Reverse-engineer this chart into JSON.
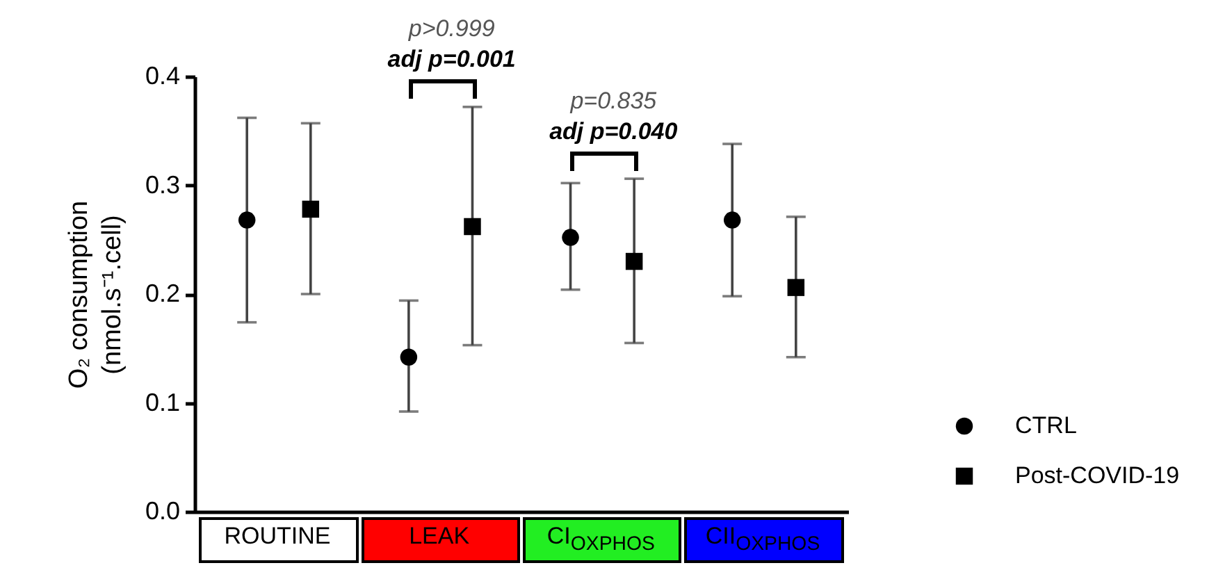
{
  "chart_data": {
    "type": "scatter",
    "ylabel": "O₂ consumption\n(nmol.s⁻¹.cell)",
    "categories": [
      "ROUTINE",
      "LEAK",
      "CI$_{OXPHOS}$",
      "CII$_{OXPHOS}$"
    ],
    "series": [
      {
        "name": "CTRL",
        "color": "#000000",
        "marker": "circle",
        "values": [
          0.268,
          0.142,
          0.252,
          0.268
        ],
        "errors": [
          [
            0.174,
            0.362
          ],
          [
            0.092,
            0.194
          ],
          [
            0.204,
            0.302
          ],
          [
            0.198,
            0.338
          ]
        ]
      },
      {
        "name": "Post-COVID-19",
        "color": "#000000",
        "marker": "square",
        "values": [
          0.278,
          0.262,
          0.23,
          0.206
        ],
        "errors": [
          [
            0.2,
            0.357
          ],
          [
            0.153,
            0.372
          ],
          [
            0.155,
            0.306
          ],
          [
            0.142,
            0.271
          ]
        ]
      }
    ],
    "ylim": [
      0,
      0.4
    ],
    "yticks": [
      {
        "value": 0,
        "label": "0.0"
      },
      0.1,
      0.2,
      0.3,
      0.4
    ],
    "annotations": [
      "p>0.999",
      "adj p=0.001",
      "p=0.835",
      "adj p=0.040"
    ],
    "legend": "right",
    "grid": false
  }
}
